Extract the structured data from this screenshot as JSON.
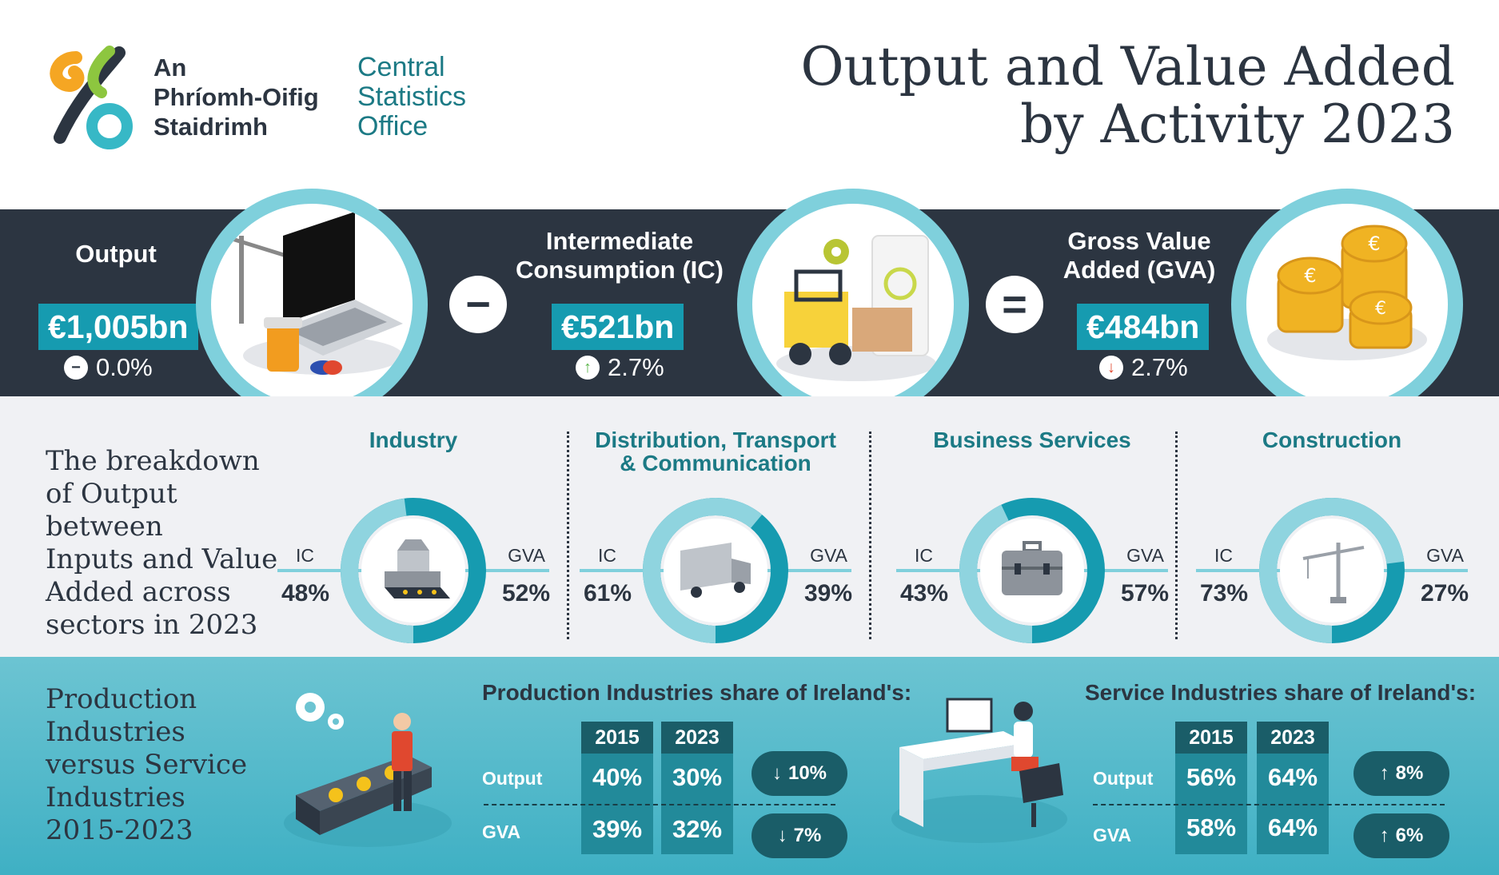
{
  "header": {
    "title_line1": "Output and Value Added",
    "title_line2": "by Activity 2023",
    "logo_irish": [
      "An",
      "Phríomh-Oifig",
      "Staidrimh"
    ],
    "logo_english": [
      "Central",
      "Statistics",
      "Office"
    ]
  },
  "colors": {
    "dark": "#2c3541",
    "teal": "#169bb0",
    "light_teal": "#7fd0dc",
    "grey": "#f0f1f4",
    "up_green": "#5bb54a",
    "down_red": "#e0482f"
  },
  "metrics": {
    "output": {
      "label": "Output",
      "value": "€1,005bn",
      "change": "0.0%",
      "trend": "flat",
      "icon": "laptop-crane-pills-icon"
    },
    "operator_minus": "−",
    "ic": {
      "label_line1": "Intermediate",
      "label_line2": "Consumption (IC)",
      "value": "€521bn",
      "change": "2.7%",
      "trend": "up",
      "icon": "forklift-gear-copyright-icon"
    },
    "operator_equals": "=",
    "gva": {
      "label_line1": "Gross Value",
      "label_line2": "Added (GVA)",
      "value": "€484bn",
      "change": "2.7%",
      "trend": "down",
      "icon": "euro-coins-icon"
    }
  },
  "breakdown": {
    "intro": [
      "The breakdown",
      "of Output between",
      "Inputs and Value",
      "Added across",
      "sectors in 2023"
    ],
    "ic_label": "IC",
    "gva_label": "GVA",
    "sectors": [
      {
        "title_line1": "Industry",
        "title_line2": "",
        "ic": "48%",
        "gva": "52%",
        "ic_fraction": 0.48,
        "icon": "factory-machine-icon"
      },
      {
        "title_line1": "Distribution, Transport",
        "title_line2": "& Communication",
        "ic": "61%",
        "gva": "39%",
        "ic_fraction": 0.61,
        "icon": "truck-icon"
      },
      {
        "title_line1": "Business Services",
        "title_line2": "",
        "ic": "43%",
        "gva": "57%",
        "ic_fraction": 0.43,
        "icon": "briefcase-icon"
      },
      {
        "title_line1": "Construction",
        "title_line2": "",
        "ic": "73%",
        "gva": "27%",
        "ic_fraction": 0.73,
        "icon": "crane-icon"
      }
    ]
  },
  "comparison": {
    "intro": [
      "Production",
      "Industries",
      "versus Service",
      "Industries",
      "2015-2023"
    ],
    "production": {
      "title": "Production Industries share of Ireland's:",
      "years": [
        "2015",
        "2023"
      ],
      "rows": [
        {
          "label": "Output",
          "v2015": "40%",
          "v2023": "30%",
          "change": "10%",
          "trend": "down"
        },
        {
          "label": "GVA",
          "v2015": "39%",
          "v2023": "32%",
          "change": "7%",
          "trend": "down"
        }
      ],
      "icon": "worker-conveyor-icon"
    },
    "service": {
      "title": "Service Industries share of Ireland's:",
      "years": [
        "2015",
        "2023"
      ],
      "rows": [
        {
          "label": "Output",
          "v2015": "56%",
          "v2023": "64%",
          "change": "8%",
          "trend": "up"
        },
        {
          "label": "GVA",
          "v2015": "58%",
          "v2023": "64%",
          "change": "6%",
          "trend": "up"
        }
      ],
      "icon": "office-worker-desk-icon"
    }
  }
}
